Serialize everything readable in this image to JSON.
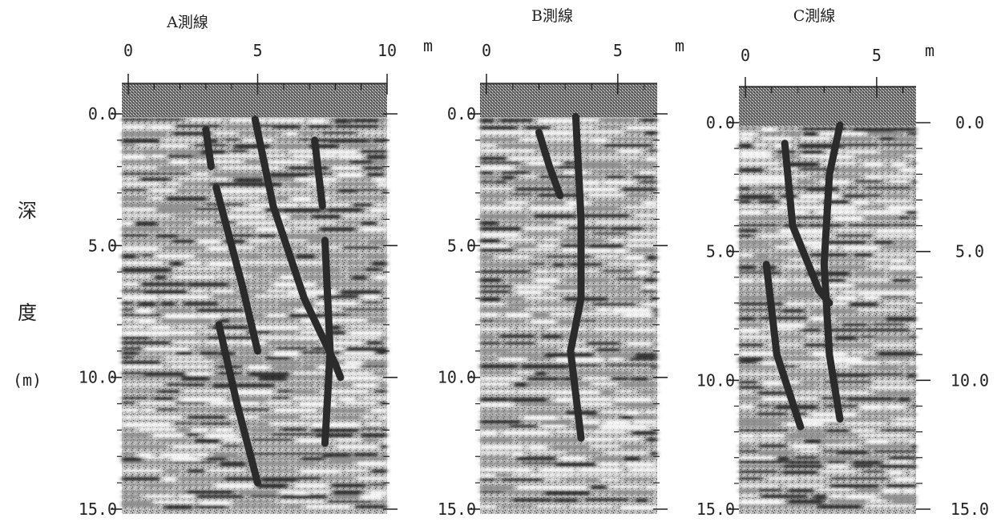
{
  "y_axis_label": {
    "line1": "深",
    "line2": "度",
    "unit": "(m)"
  },
  "chart_data": [
    {
      "type": "radargram",
      "title": "A測線",
      "x_unit": "m",
      "x_range": [
        0,
        10
      ],
      "x_major_ticks": [
        0,
        5,
        10
      ],
      "x_major_tick_labels": [
        "0",
        "5",
        "10"
      ],
      "x_minor_step": 1,
      "y_range": [
        0,
        15
      ],
      "y_ticks": [
        0,
        5,
        10,
        15
      ],
      "y_tick_labels": [
        "0.0",
        "5.0",
        "10.0",
        "15.0"
      ],
      "y_minor_step": 1,
      "right_axis_labels": false,
      "traced_lines": [
        {
          "name": "line-1",
          "points": [
            [
              3.0,
              0.6
            ],
            [
              3.2,
              2.0
            ]
          ]
        },
        {
          "name": "line-2",
          "points": [
            [
              3.4,
              2.8
            ],
            [
              4.4,
              6.5
            ],
            [
              5.0,
              9.0
            ]
          ]
        },
        {
          "name": "line-3",
          "points": [
            [
              3.5,
              8.0
            ],
            [
              4.2,
              11.0
            ],
            [
              5.0,
              14.0
            ]
          ]
        },
        {
          "name": "line-4",
          "points": [
            [
              4.9,
              0.2
            ],
            [
              5.6,
              3.5
            ],
            [
              6.8,
              7.0
            ],
            [
              8.0,
              9.5
            ],
            [
              8.2,
              10.0
            ]
          ]
        },
        {
          "name": "line-5",
          "points": [
            [
              7.2,
              1.0
            ],
            [
              7.5,
              3.5
            ]
          ]
        },
        {
          "name": "line-6",
          "points": [
            [
              7.6,
              4.8
            ],
            [
              7.8,
              9.0
            ],
            [
              7.6,
              12.5
            ]
          ]
        }
      ]
    },
    {
      "type": "radargram",
      "title": "B測線",
      "x_unit": "m",
      "x_range": [
        0,
        6.5
      ],
      "x_major_ticks": [
        0,
        5
      ],
      "x_major_tick_labels": [
        "0",
        "5"
      ],
      "x_minor_step": 1,
      "y_range": [
        0,
        15
      ],
      "y_ticks": [
        0,
        5,
        10,
        15
      ],
      "y_tick_labels": [
        "0.0",
        "5.0",
        "10.0",
        "15.0"
      ],
      "y_minor_step": 1,
      "right_axis_labels": false,
      "traced_lines": [
        {
          "name": "line-1",
          "points": [
            [
              2.0,
              0.7
            ],
            [
              2.4,
              2.0
            ],
            [
              2.8,
              3.1
            ]
          ]
        },
        {
          "name": "line-2",
          "points": [
            [
              3.4,
              0.1
            ],
            [
              3.6,
              4.0
            ],
            [
              3.6,
              7.0
            ],
            [
              3.2,
              9.0
            ],
            [
              3.6,
              12.3
            ]
          ]
        }
      ]
    },
    {
      "type": "radargram",
      "title": "C測線",
      "x_unit": "m",
      "x_range": [
        0,
        6.5
      ],
      "x_major_ticks": [
        0,
        5
      ],
      "x_major_tick_labels": [
        "0",
        "5"
      ],
      "x_minor_step": 1,
      "y_range": [
        0,
        15
      ],
      "y_ticks": [
        0,
        5,
        10,
        15
      ],
      "y_tick_labels": [
        "0.0",
        "5.0",
        "10.0",
        "15.0"
      ],
      "y_minor_step": 1,
      "right_axis_labels": true,
      "traced_lines": [
        {
          "name": "line-1",
          "points": [
            [
              1.5,
              0.8
            ],
            [
              1.8,
              4.0
            ],
            [
              2.8,
              6.5
            ],
            [
              3.2,
              7.0
            ]
          ]
        },
        {
          "name": "line-2",
          "points": [
            [
              3.6,
              0.1
            ],
            [
              3.2,
              2.0
            ],
            [
              3.0,
              5.5
            ],
            [
              3.2,
              9.0
            ],
            [
              3.6,
              11.5
            ]
          ]
        },
        {
          "name": "line-3",
          "points": [
            [
              0.8,
              5.5
            ],
            [
              1.2,
              9.0
            ],
            [
              2.1,
              11.8
            ]
          ]
        }
      ]
    }
  ]
}
